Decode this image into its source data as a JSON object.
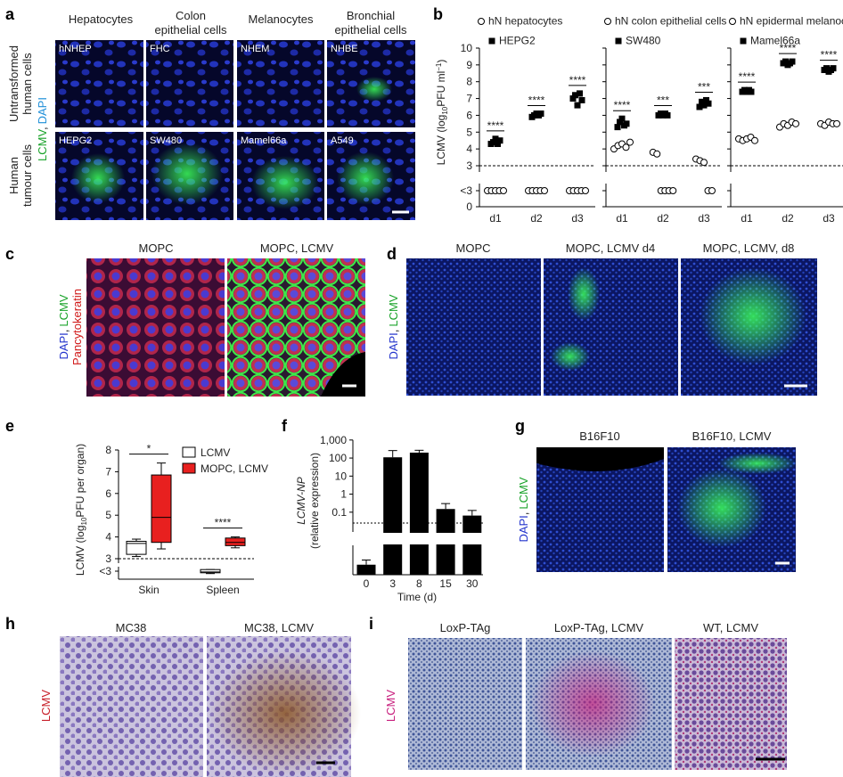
{
  "panels": {
    "a": {
      "letter": "a",
      "column_headers": [
        [
          "Hepatocytes"
        ],
        [
          "Colon",
          "epithelial cells"
        ],
        [
          "Melanocytes"
        ],
        [
          "Bronchial",
          "epithelial cells"
        ]
      ],
      "row_labels": [
        [
          "Untransformed",
          "human cells"
        ],
        [
          "Human",
          "tumour cells"
        ]
      ],
      "stain_label": [
        "LCMV",
        ",",
        "DAPI"
      ],
      "image_labels": [
        [
          "hNHEP",
          "FHC",
          "NHEM",
          "NHBE"
        ],
        [
          "HEPG2",
          "SW480",
          "Mamel66a",
          "A549"
        ]
      ]
    },
    "b": {
      "letter": "b",
      "y_label": [
        "LCMV (log",
        "10",
        "PFU ml",
        "−1",
        ")"
      ],
      "ylim": [
        0,
        10
      ],
      "yticks": [
        0,
        {
          "value": 2,
          "label": "<3"
        },
        3,
        4,
        5,
        6,
        7,
        8,
        9,
        10
      ],
      "threshold": 3,
      "categories": [
        "d1",
        "d2",
        "d3"
      ],
      "charts": [
        {
          "type": "scatter",
          "series": [
            {
              "name": "hN hepatocytes",
              "marker": "open-circle",
              "values": [
                [
                  2,
                  2,
                  2,
                  2,
                  2
                ],
                [
                  2,
                  2,
                  2,
                  2,
                  2
                ],
                [
                  2,
                  2,
                  2,
                  2,
                  2
                ]
              ]
            },
            {
              "name": "HEPG2",
              "marker": "square",
              "values": [
                [
                  4.3,
                  4.4,
                  4.6,
                  4.3,
                  4.5
                ],
                [
                  5.9,
                  6.0,
                  6.1,
                  6.0,
                  6.1
                ],
                [
                  7.0,
                  7.2,
                  6.6,
                  7.3,
                  6.9
                ]
              ]
            }
          ],
          "significance": [
            "****",
            "****",
            "****"
          ]
        },
        {
          "type": "scatter",
          "series": [
            {
              "name": "hN colon epithelial cells",
              "marker": "open-circle",
              "values": [
                [
                  4.0,
                  4.2,
                  4.3,
                  4.1,
                  4.4
                ],
                [
                  3.8,
                  3.7,
                  2,
                  2,
                  2,
                  2
                ],
                [
                  3.4,
                  3.3,
                  3.2,
                  2,
                  2
                ]
              ]
            },
            {
              "name": "SW480",
              "marker": "square",
              "values": [
                [
                  5.3,
                  5.6,
                  5.8,
                  5.4,
                  5.5
                ],
                [
                  6.0,
                  6.1,
                  6.0,
                  6.1,
                  6.0
                ],
                [
                  6.5,
                  6.8,
                  6.6,
                  6.9,
                  6.7
                ]
              ]
            }
          ],
          "significance": [
            "****",
            "***",
            "***"
          ]
        },
        {
          "type": "scatter",
          "series": [
            {
              "name": "hN epidermal melanocytes",
              "marker": "open-circle",
              "values": [
                [
                  4.6,
                  4.5,
                  4.6,
                  4.7,
                  4.5
                ],
                [
                  5.3,
                  5.5,
                  5.4,
                  5.6,
                  5.5
                ],
                [
                  5.5,
                  5.4,
                  5.6,
                  5.5,
                  5.5
                ]
              ]
            },
            {
              "name": "Mamel66a",
              "marker": "square",
              "values": [
                [
                  7.4,
                  7.5,
                  7.4,
                  7.5,
                  7.4
                ],
                [
                  9.1,
                  9.2,
                  9.0,
                  9.1,
                  9.2
                ],
                [
                  8.7,
                  8.8,
                  8.6,
                  8.7,
                  8.8
                ]
              ]
            }
          ],
          "significance": [
            "****",
            "****",
            "****"
          ]
        }
      ]
    },
    "c": {
      "letter": "c",
      "titles": [
        "MOPC",
        "MOPC, LCMV"
      ],
      "stain_label": [
        "DAPI",
        ",",
        "LCMV"
      ],
      "stain_label_2": "Pancytokeratin"
    },
    "d": {
      "letter": "d",
      "titles": [
        "MOPC",
        "MOPC, LCMV d4",
        "MOPC, LCMV, d8"
      ],
      "stain_label": [
        "DAPI",
        ",",
        "LCMV"
      ]
    },
    "e": {
      "letter": "e",
      "type": "box",
      "y_label": [
        "LCMV (log",
        "10",
        "PFU per organ)"
      ],
      "ylim": [
        1.5,
        8
      ],
      "yticks": [
        {
          "value": 2,
          "label": "<3"
        },
        3,
        4,
        5,
        6,
        7,
        8
      ],
      "threshold": 3,
      "categories": [
        "Skin",
        "Spleen"
      ],
      "series": [
        {
          "name": "LCMV",
          "color": "#ffffff",
          "boxes": [
            {
              "min": 3.1,
              "q1": 3.2,
              "median": 3.7,
              "q3": 3.8,
              "max": 3.9
            },
            {
              "min": 1.85,
              "q1": 1.9,
              "median": 1.95,
              "q3": 2.1,
              "max": 2.1
            }
          ]
        },
        {
          "name": "MOPC, LCMV",
          "color": "#e8201f",
          "boxes": [
            {
              "min": 3.45,
              "q1": 3.75,
              "median": 4.9,
              "q3": 6.85,
              "max": 7.4
            },
            {
              "min": 3.5,
              "q1": 3.6,
              "median": 3.75,
              "q3": 3.95,
              "max": 4.0
            }
          ]
        }
      ],
      "significance": [
        "*",
        "****"
      ]
    },
    "f": {
      "letter": "f",
      "type": "bar",
      "y_label": [
        "LCMV-NP",
        "(relative expression)"
      ],
      "x_label": "Time (d)",
      "categories": [
        "0",
        "3",
        "8",
        "15",
        "30"
      ],
      "values": [
        0.003,
        110,
        200,
        0.15,
        0.065
      ],
      "errors": [
        0.002,
        150,
        70,
        0.15,
        0.06
      ],
      "color": "#000000",
      "log": true,
      "ylim": [
        0.001,
        1000
      ],
      "yticks": [
        0.1,
        1,
        10,
        100,
        {
          "value": 1000,
          "label": "1,000"
        }
      ],
      "detection_limit": 0.025
    },
    "g": {
      "letter": "g",
      "titles": [
        "B16F10",
        "B16F10, LCMV"
      ],
      "stain_label": [
        "DAPI",
        ",",
        "LCMV"
      ]
    },
    "h": {
      "letter": "h",
      "titles": [
        "MC38",
        "MC38, LCMV"
      ],
      "stain_label": "LCMV"
    },
    "i": {
      "letter": "i",
      "titles": [
        "LoxP-TAg",
        "LoxP-TAg, LCMV",
        "WT, LCMV"
      ],
      "stain_label": "LCMV"
    }
  }
}
